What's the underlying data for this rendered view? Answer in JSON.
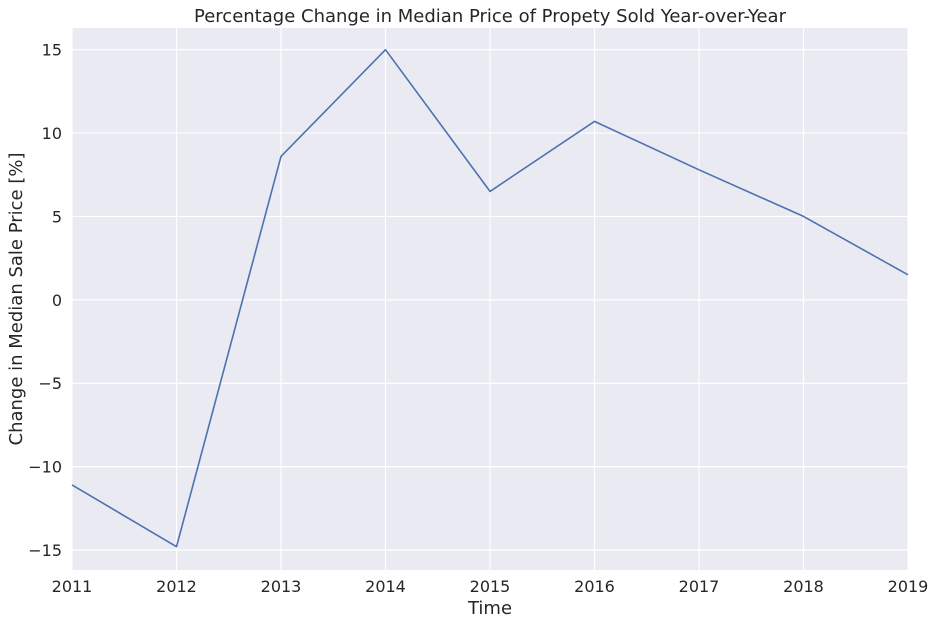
{
  "chart_data": {
    "type": "line",
    "title": "Percentage Change in Median Price of Propety Sold Year-over-Year",
    "xlabel": "Time",
    "ylabel": "Change in Median Sale Price [%]",
    "x": [
      2011,
      2012,
      2013,
      2014,
      2015,
      2016,
      2017,
      2018,
      2019
    ],
    "series": [
      {
        "values": [
          -11.1,
          -14.8,
          8.6,
          15.0,
          6.5,
          10.7,
          7.8,
          5.0,
          1.5
        ]
      }
    ],
    "xlim": [
      2011,
      2019
    ],
    "ylim": [
      -16.2,
      16.3
    ],
    "xticks": [
      2011,
      2012,
      2013,
      2014,
      2015,
      2016,
      2017,
      2018,
      2019
    ],
    "yticks": [
      15,
      10,
      5,
      0,
      -5,
      -10,
      -15
    ],
    "ytick_labels": [
      "15",
      "10",
      "5",
      "0",
      "−5",
      "−10",
      "−15"
    ],
    "grid": true,
    "colors": {
      "background": "#eaeaf2",
      "grid": "#ffffff",
      "line": "#4c72b0",
      "text": "#262626"
    }
  }
}
